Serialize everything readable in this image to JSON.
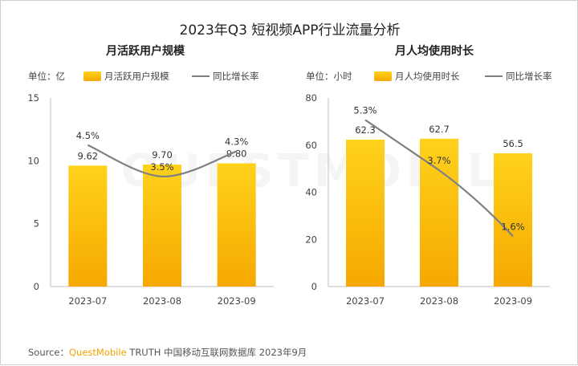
{
  "title": "2023年Q3 短视频APP行业流量分析",
  "watermark": "QUESTMOBILE",
  "footer": {
    "prefix": "Source：",
    "brand": "QuestMobile",
    "rest": " TRUTH 中国移动互联网数据库 2023年9月"
  },
  "colors": {
    "bar_top": "#ffd21c",
    "bar_bottom": "#f6a800",
    "line": "#808080",
    "axis": "#bfbfbf"
  },
  "chart_data": [
    {
      "type": "bar",
      "title": "月活跃用户规模",
      "unit_label": "单位：亿",
      "categories": [
        "2023-07",
        "2023-08",
        "2023-09"
      ],
      "series": [
        {
          "name": "月活跃用户规模",
          "type": "bar",
          "values": [
            9.62,
            9.7,
            9.8
          ],
          "labels": [
            "9.62",
            "9.70",
            "9.80"
          ]
        },
        {
          "name": "同比增长率",
          "type": "line",
          "values": [
            4.5,
            3.5,
            4.3
          ],
          "labels": [
            "4.5%",
            "3.5%",
            "4.3%"
          ]
        }
      ],
      "ylim": [
        0,
        15
      ],
      "yticks": [
        0,
        5,
        10,
        15
      ],
      "line_range": [
        0,
        6
      ],
      "line_smooth": true,
      "legend_position": "top"
    },
    {
      "type": "bar",
      "title": "月人均使用时长",
      "unit_label": "单位：小时",
      "categories": [
        "2023-07",
        "2023-08",
        "2023-09"
      ],
      "series": [
        {
          "name": "月人均使用时长",
          "type": "bar",
          "values": [
            62.3,
            62.7,
            56.5
          ],
          "labels": [
            "62.3",
            "62.7",
            "56.5"
          ]
        },
        {
          "name": "同比增长率",
          "type": "line",
          "values": [
            5.3,
            3.7,
            1.6
          ],
          "labels": [
            "5.3%",
            "3.7%",
            "1.6%"
          ]
        }
      ],
      "ylim": [
        0,
        80
      ],
      "yticks": [
        0,
        20,
        40,
        60,
        80
      ],
      "line_range": [
        0,
        6
      ],
      "line_smooth": false,
      "legend_position": "top"
    }
  ]
}
